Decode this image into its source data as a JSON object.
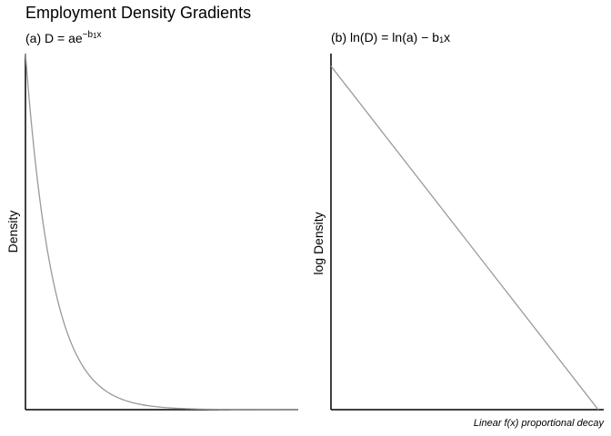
{
  "title": "Employment Density Gradients",
  "caption": "Linear f(x) proportional decay",
  "chart_data": [
    {
      "type": "line",
      "panel_label": "(a)",
      "formula": {
        "lhs": "D = ae",
        "exponent_prefix": "−b",
        "exponent_sub": "1",
        "exponent_var": "x"
      },
      "ylabel": "Density",
      "xlabel": "",
      "xlim": [
        0,
        1
      ],
      "ylim": [
        0,
        1
      ],
      "curve": {
        "kind": "exponential_decay",
        "a": 1.0,
        "b": 10,
        "x_start": 0,
        "x_end": 1
      },
      "grid": false,
      "line_color": "#999999"
    },
    {
      "type": "line",
      "panel_label": "(b)",
      "formula": {
        "text_before": "ln(D) = ln(a) − b",
        "sub": "1",
        "text_after": "x"
      },
      "ylabel": "log Density",
      "xlabel": "",
      "xlim": [
        0,
        1
      ],
      "ylim": [
        0,
        1
      ],
      "series": [
        {
          "x": [
            0,
            0.98
          ],
          "y": [
            0.965,
            0.0
          ]
        }
      ],
      "grid": false,
      "line_color": "#999999"
    }
  ]
}
